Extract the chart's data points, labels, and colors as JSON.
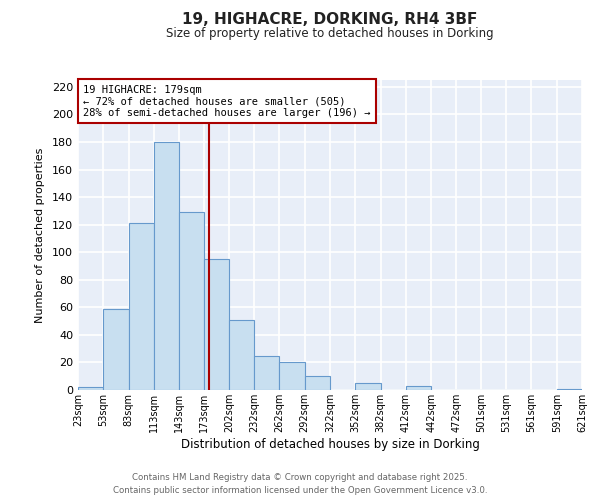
{
  "title": "19, HIGHACRE, DORKING, RH4 3BF",
  "subtitle": "Size of property relative to detached houses in Dorking",
  "xlabel": "Distribution of detached houses by size in Dorking",
  "ylabel": "Number of detached properties",
  "bar_color": "#c8dff0",
  "bar_edge_color": "#6699cc",
  "background_color": "#e8eef8",
  "grid_color": "#ffffff",
  "vline_x": 179,
  "vline_color": "#aa0000",
  "annotation_title": "19 HIGHACRE: 179sqm",
  "annotation_line1": "← 72% of detached houses are smaller (505)",
  "annotation_line2": "28% of semi-detached houses are larger (196) →",
  "annotation_box_color": "#ffffff",
  "annotation_box_edge": "#aa0000",
  "bin_edges": [
    23,
    53,
    83,
    113,
    143,
    173,
    202,
    232,
    262,
    292,
    322,
    352,
    382,
    412,
    442,
    472,
    501,
    531,
    561,
    591,
    621
  ],
  "bar_heights": [
    2,
    59,
    121,
    180,
    129,
    95,
    51,
    25,
    20,
    10,
    0,
    5,
    0,
    3,
    0,
    0,
    0,
    0,
    0,
    1
  ],
  "ylim": [
    0,
    225
  ],
  "yticks": [
    0,
    20,
    40,
    60,
    80,
    100,
    120,
    140,
    160,
    180,
    200,
    220
  ],
  "footer_line1": "Contains HM Land Registry data © Crown copyright and database right 2025.",
  "footer_line2": "Contains public sector information licensed under the Open Government Licence v3.0.",
  "tick_labels": [
    "23sqm",
    "53sqm",
    "83sqm",
    "113sqm",
    "143sqm",
    "173sqm",
    "202sqm",
    "232sqm",
    "262sqm",
    "292sqm",
    "322sqm",
    "352sqm",
    "382sqm",
    "412sqm",
    "442sqm",
    "472sqm",
    "501sqm",
    "531sqm",
    "561sqm",
    "591sqm",
    "621sqm"
  ]
}
